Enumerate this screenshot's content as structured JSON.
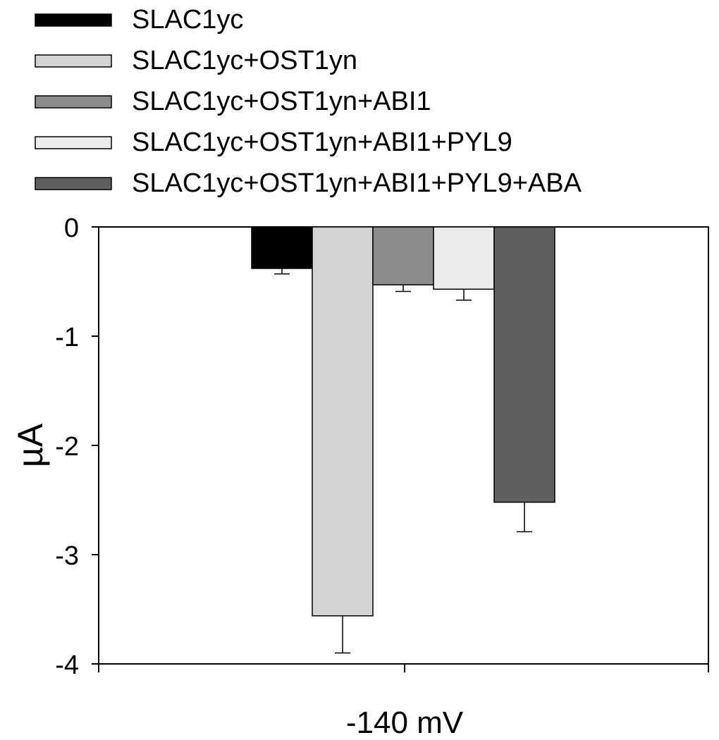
{
  "chart_data": {
    "type": "bar",
    "categories": [
      "-140 mV"
    ],
    "xlabel": "-140 mV",
    "ylabel": "µA",
    "ylim": [
      -4,
      0
    ],
    "yticks": [
      0,
      -1,
      -2,
      -3,
      -4
    ],
    "grid": false,
    "legend_position": "top-left",
    "series": [
      {
        "name": "SLAC1yc",
        "values": [
          -0.38
        ],
        "error": [
          0.05
        ],
        "color": "#000000"
      },
      {
        "name": "SLAC1yc+OST1yn",
        "values": [
          -3.56
        ],
        "error": [
          0.34
        ],
        "color": "#d3d3d3"
      },
      {
        "name": "SLAC1yc+OST1yn+ABI1",
        "values": [
          -0.53
        ],
        "error": [
          0.06
        ],
        "color": "#8c8c8c"
      },
      {
        "name": "SLAC1yc+OST1yn+ABI1+PYL9",
        "values": [
          -0.57
        ],
        "error": [
          0.1
        ],
        "color": "#ebebeb"
      },
      {
        "name": "SLAC1yc+OST1yn+ABI1+PYL9+ABA",
        "values": [
          -2.52
        ],
        "error": [
          0.27
        ],
        "color": "#5f5f5f"
      }
    ]
  }
}
